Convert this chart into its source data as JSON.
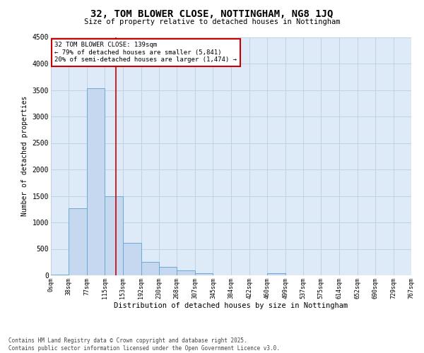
{
  "title": "32, TOM BLOWER CLOSE, NOTTINGHAM, NG8 1JQ",
  "subtitle": "Size of property relative to detached houses in Nottingham",
  "xlabel": "Distribution of detached houses by size in Nottingham",
  "ylabel": "Number of detached properties",
  "bin_edges": [
    0,
    38,
    77,
    115,
    153,
    192,
    230,
    268,
    307,
    345,
    384,
    422,
    460,
    499,
    537,
    575,
    614,
    652,
    690,
    729,
    767
  ],
  "bar_heights": [
    20,
    1270,
    3530,
    1490,
    620,
    250,
    155,
    95,
    45,
    0,
    0,
    0,
    40,
    0,
    0,
    0,
    0,
    0,
    0,
    0
  ],
  "bar_color": "#c5d8ef",
  "bar_edge_color": "#6aaad4",
  "grid_color": "#b8cfe0",
  "background_color": "#deeaf7",
  "property_sqm": 139,
  "annotation_title": "32 TOM BLOWER CLOSE: 139sqm",
  "annotation_line1": "← 79% of detached houses are smaller (5,841)",
  "annotation_line2": "20% of semi-detached houses are larger (1,474) →",
  "vline_color": "#cc0000",
  "annotation_box_edge": "#cc0000",
  "ylim": [
    0,
    4500
  ],
  "yticks": [
    0,
    500,
    1000,
    1500,
    2000,
    2500,
    3000,
    3500,
    4000,
    4500
  ],
  "footer_line1": "Contains HM Land Registry data © Crown copyright and database right 2025.",
  "footer_line2": "Contains public sector information licensed under the Open Government Licence v3.0."
}
